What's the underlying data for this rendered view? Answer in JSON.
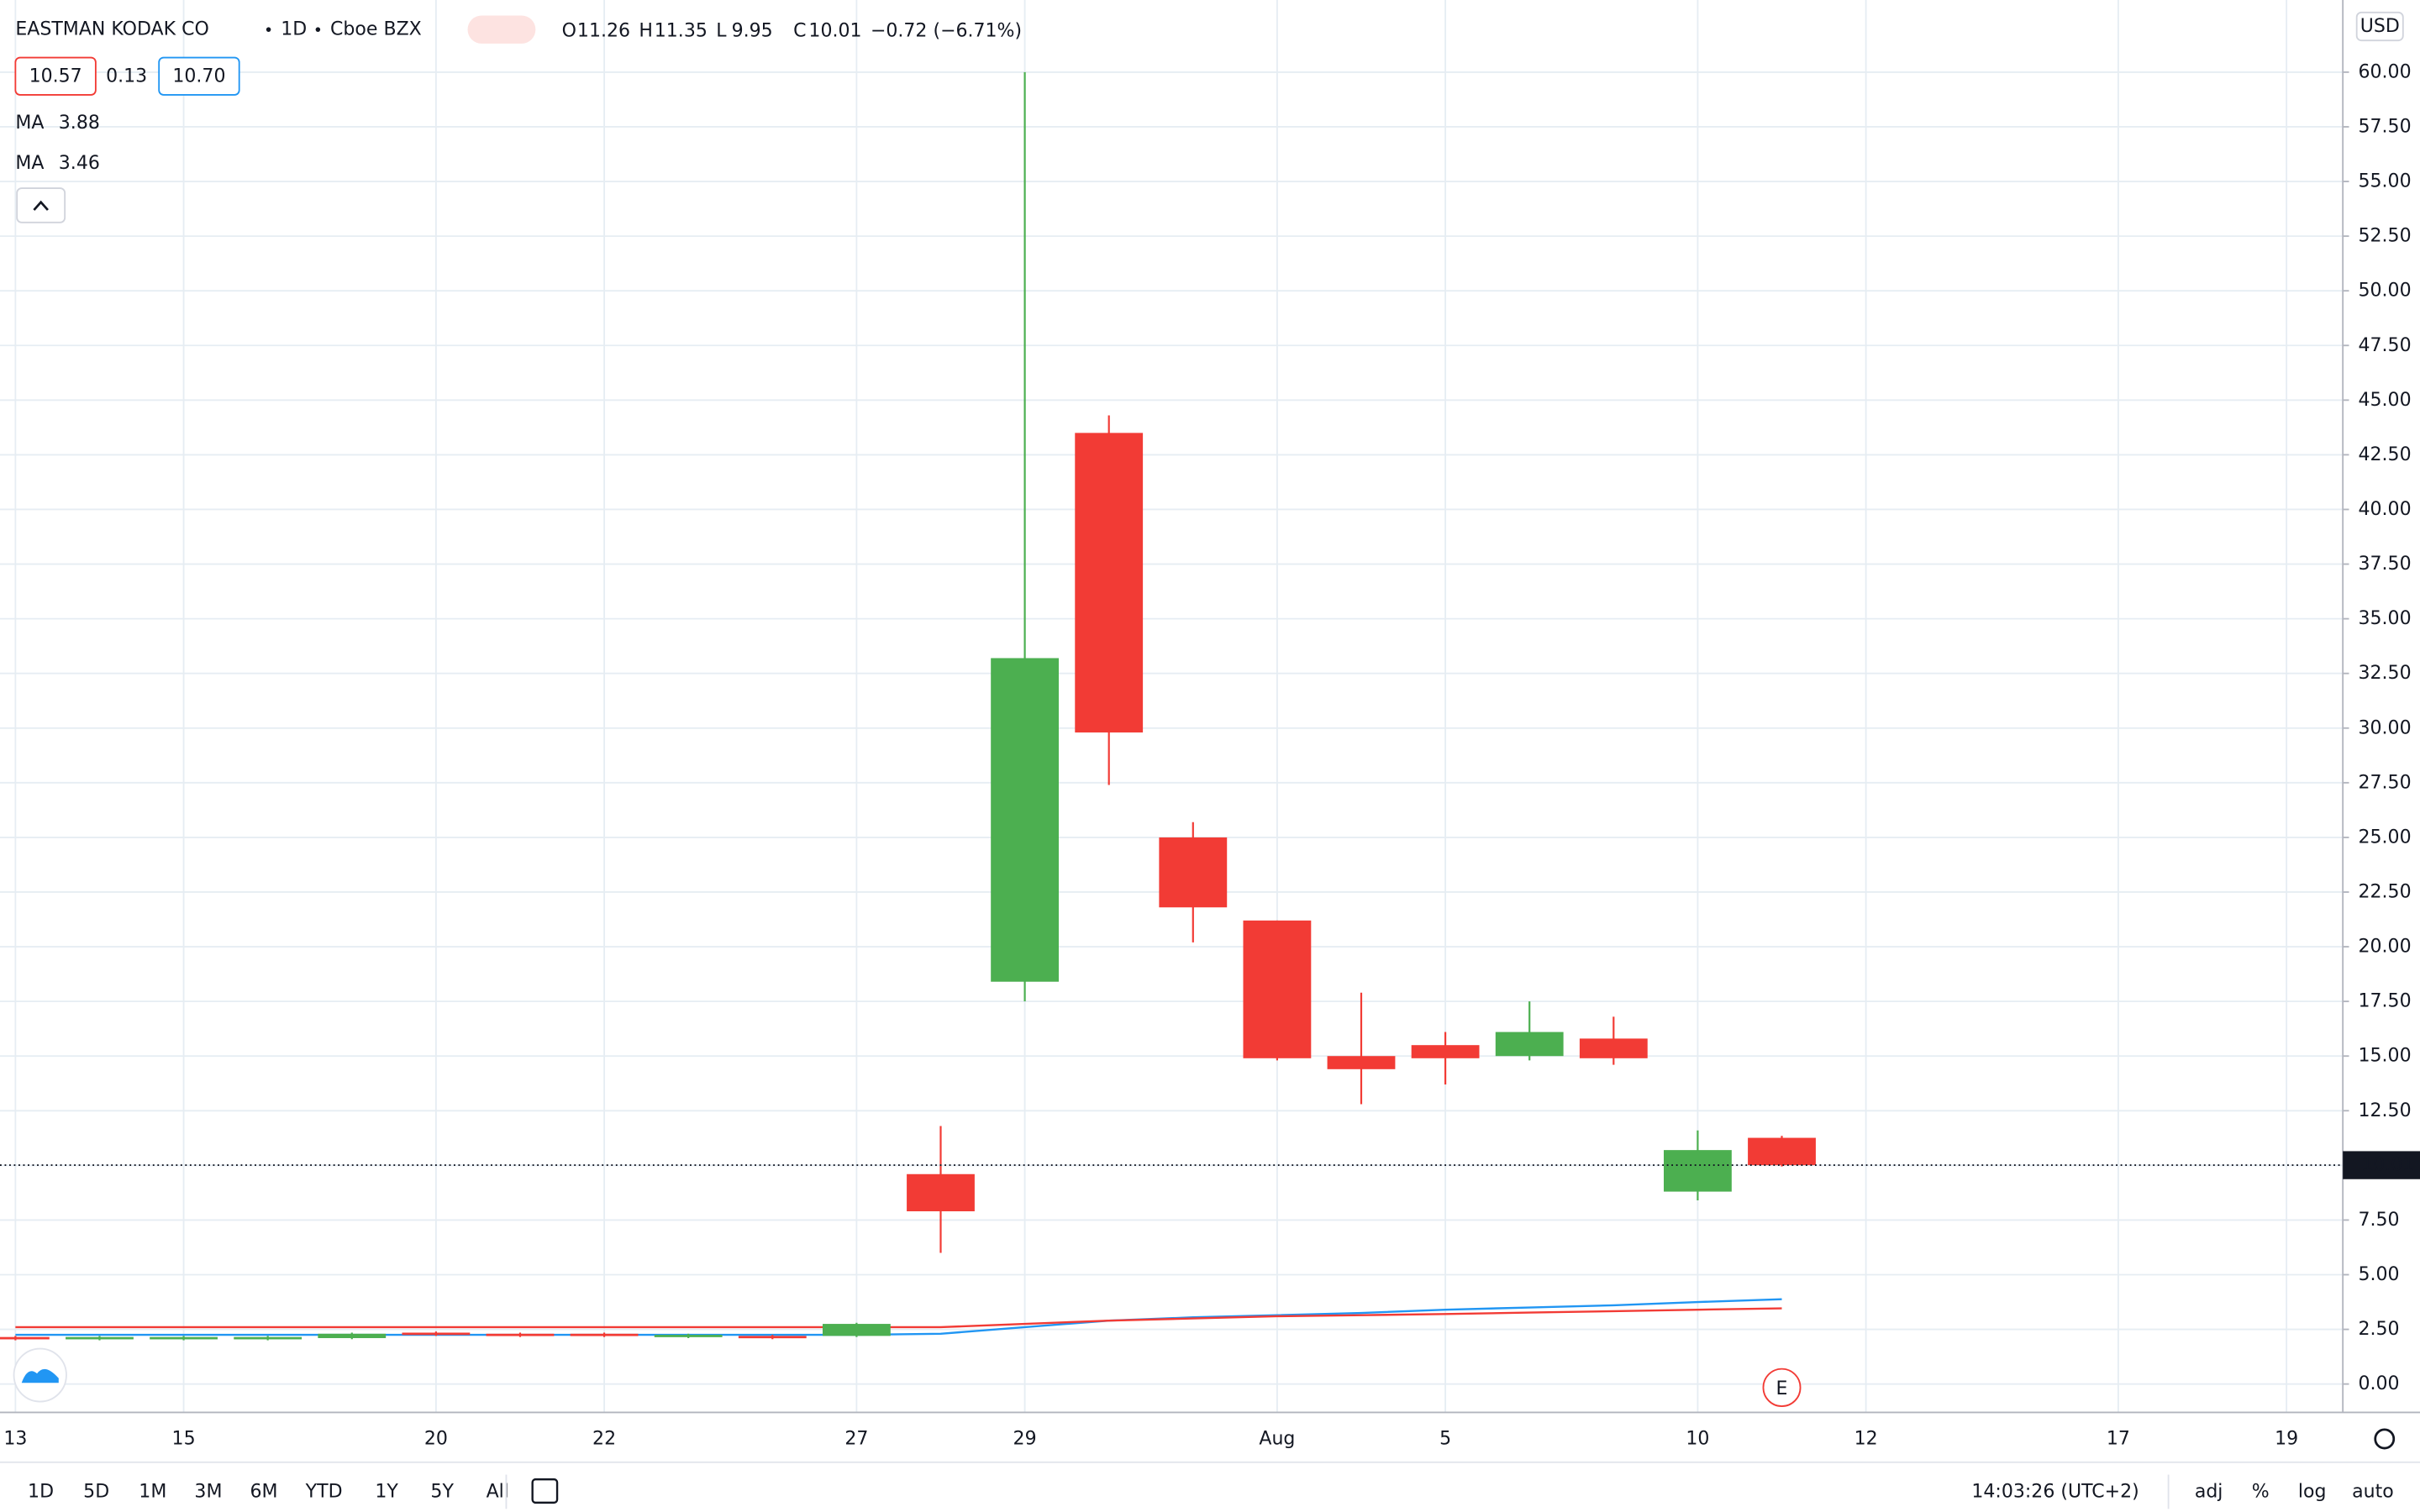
{
  "header": {
    "symbol": "EASTMAN KODAK CO",
    "interval": "1D",
    "exchange": "Cboe BZX",
    "ohlc_labels": [
      "O",
      "H",
      "L",
      "C"
    ],
    "change_label": "−0.72 (−6.71%)",
    "bid": "10.57",
    "spread": "0.13",
    "ask": "10.70",
    "ma_label": "MA"
  },
  "chart_data": {
    "type": "candlestick",
    "categories": [
      "13",
      null,
      "15",
      null,
      null,
      "20",
      null,
      "22",
      null,
      null,
      "27",
      null,
      "29",
      null,
      null,
      "Aug",
      null,
      "5",
      null,
      null,
      "10",
      null,
      "12",
      null,
      null,
      "17",
      null,
      "19"
    ],
    "open": [
      2.15,
      2.05,
      2.05,
      2.05,
      2.1,
      2.35,
      2.3,
      2.3,
      2.15,
      2.2,
      2.2,
      9.6,
      18.4,
      43.5,
      25.0,
      21.2,
      15.0,
      15.5,
      15.0,
      15.8,
      8.8,
      11.26,
      null,
      null,
      null,
      null,
      null,
      null
    ],
    "high": [
      2.2,
      2.2,
      2.2,
      2.2,
      2.35,
      2.4,
      2.35,
      2.35,
      2.3,
      2.25,
      2.8,
      11.8,
      60.0,
      44.3,
      25.7,
      21.2,
      17.9,
      16.1,
      17.5,
      16.8,
      11.6,
      11.35,
      null,
      null,
      null,
      null,
      null,
      null
    ],
    "low": [
      2.0,
      2.0,
      2.0,
      2.0,
      2.05,
      2.2,
      2.15,
      2.15,
      2.1,
      2.05,
      2.15,
      6.0,
      17.5,
      27.4,
      20.2,
      14.8,
      12.8,
      13.7,
      14.8,
      14.6,
      8.4,
      9.95,
      null,
      null,
      null,
      null,
      null,
      null
    ],
    "close": [
      2.05,
      2.15,
      2.15,
      2.15,
      2.3,
      2.25,
      2.2,
      2.2,
      2.25,
      2.1,
      2.75,
      7.9,
      33.2,
      29.8,
      21.8,
      14.9,
      14.4,
      14.9,
      16.1,
      14.9,
      10.7,
      10.01,
      null,
      null,
      null,
      null,
      null,
      null
    ],
    "up_color": "#4caf50",
    "down_color": "#f23b35",
    "moving_averages": [
      {
        "name": "MA",
        "color": "#2196f3",
        "values": [
          2.25,
          2.25,
          2.25,
          2.25,
          2.25,
          2.25,
          2.25,
          2.25,
          2.25,
          2.25,
          2.25,
          2.3,
          2.6,
          2.9,
          3.05,
          3.15,
          3.25,
          3.4,
          3.5,
          3.6,
          3.75,
          3.88,
          null,
          null,
          null,
          null,
          null,
          null
        ]
      },
      {
        "name": "MA",
        "color": "#f23b35",
        "values": [
          2.6,
          2.6,
          2.6,
          2.6,
          2.6,
          2.6,
          2.6,
          2.6,
          2.6,
          2.6,
          2.6,
          2.6,
          2.75,
          2.9,
          3.0,
          3.1,
          3.15,
          3.2,
          3.27,
          3.33,
          3.4,
          3.46,
          null,
          null,
          null,
          null,
          null,
          null
        ]
      }
    ],
    "ylim": [
      -1.3,
      63.3
    ],
    "yticks": [
      {
        "value": 0,
        "label": "0.00"
      },
      {
        "value": 2.5,
        "label": "2.50"
      },
      {
        "value": 5,
        "label": "5.00"
      },
      {
        "value": 7.5,
        "label": "7.50"
      },
      {
        "value": 10,
        "label": "10.00"
      },
      {
        "value": 12.5,
        "label": "12.50"
      },
      {
        "value": 15,
        "label": "15.00"
      },
      {
        "value": 17.5,
        "label": "17.50"
      },
      {
        "value": 20,
        "label": "20.00"
      },
      {
        "value": 22.5,
        "label": "22.50"
      },
      {
        "value": 25,
        "label": "25.00"
      },
      {
        "value": 27.5,
        "label": "27.50"
      },
      {
        "value": 30,
        "label": "30.00"
      },
      {
        "value": 32.5,
        "label": "32.50"
      },
      {
        "value": 35,
        "label": "35.00"
      },
      {
        "value": 37.5,
        "label": "37.50"
      },
      {
        "value": 40,
        "label": "40.00"
      },
      {
        "value": 42.5,
        "label": "42.50"
      },
      {
        "value": 45,
        "label": "45.00"
      },
      {
        "value": 47.5,
        "label": "47.50"
      },
      {
        "value": 50,
        "label": "50.00"
      },
      {
        "value": 52.5,
        "label": "52.50"
      },
      {
        "value": 55,
        "label": "55.00"
      },
      {
        "value": 57.5,
        "label": "57.50"
      },
      {
        "value": 60,
        "label": "60.00"
      }
    ],
    "currency": "USD",
    "event_marker": "E",
    "grid": true
  },
  "toolbar": {
    "ranges": [
      "1D",
      "5D",
      "1M",
      "3M",
      "6M",
      "YTD",
      "1Y",
      "5Y",
      "All"
    ],
    "time": "14:03:26 (UTC+2)",
    "options": [
      "adj",
      "%",
      "log",
      "auto"
    ]
  }
}
